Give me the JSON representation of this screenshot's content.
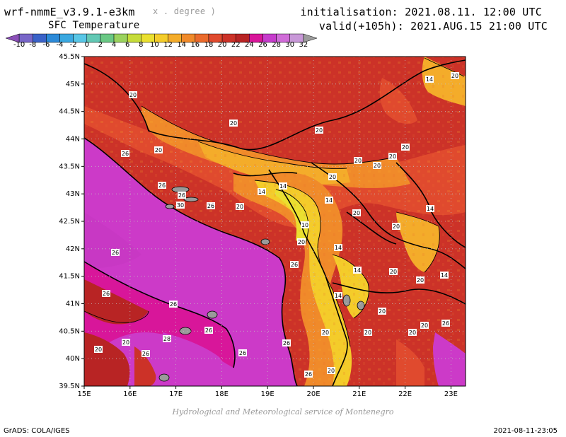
{
  "header": {
    "model": "wrf-nmmE_v3.9.1-e3km",
    "units": "x . degree )",
    "product": "SFC Temperature",
    "init": "initialisation: 2021.08.11. 12:00 UTC",
    "valid": "valid(+105h): 2021.AUG.15 21:00 UTC"
  },
  "colorbar": {
    "labels": [
      "-10",
      "-8",
      "-6",
      "-4",
      "-2",
      "0",
      "2",
      "4",
      "6",
      "8",
      "10",
      "12",
      "14",
      "16",
      "18",
      "20",
      "22",
      "24",
      "26",
      "28",
      "30",
      "32"
    ],
    "colors": [
      "#8a4fb8",
      "#7866c8",
      "#3a62c8",
      "#2c8ad8",
      "#3aa8e0",
      "#58c6e6",
      "#62c8b4",
      "#6ac884",
      "#9ad25e",
      "#c6dc3a",
      "#eae030",
      "#f4cc2a",
      "#f4ac2a",
      "#f08a2a",
      "#ea6a2c",
      "#e04a2e",
      "#cc3228",
      "#b82424",
      "#d8169a",
      "#c63ccc",
      "#d06cd8",
      "#c898d8",
      "#9c9c9c"
    ]
  },
  "axes": {
    "lat_labels": [
      "45.5N",
      "45N",
      "44.5N",
      "44N",
      "43.5N",
      "43N",
      "42.5N",
      "42N",
      "41.5N",
      "41N",
      "40.5N",
      "40N",
      "39.5N"
    ],
    "lon_labels": [
      "15E",
      "16E",
      "17E",
      "18E",
      "19E",
      "20E",
      "21E",
      "22E",
      "23E"
    ]
  },
  "contour_labels": [
    "20",
    "20",
    "20",
    "20",
    "20",
    "20",
    "20",
    "20",
    "20",
    "20",
    "14",
    "14",
    "14",
    "14",
    "14",
    "14",
    "14",
    "14",
    "14",
    "10",
    "20",
    "20",
    "20",
    "20",
    "20",
    "26",
    "26",
    "26",
    "26",
    "30",
    "26",
    "26",
    "26",
    "26",
    "26",
    "26",
    "26",
    "28",
    "26",
    "20",
    "20",
    "20",
    "20",
    "20",
    "20",
    "20",
    "20",
    "20",
    "26",
    "26"
  ],
  "footer": {
    "credit": "Hydrological and Meteorological service of Montenegro",
    "software": "GrADS: COLA/IGES",
    "timestamp": "2021-08-11-23:05"
  }
}
